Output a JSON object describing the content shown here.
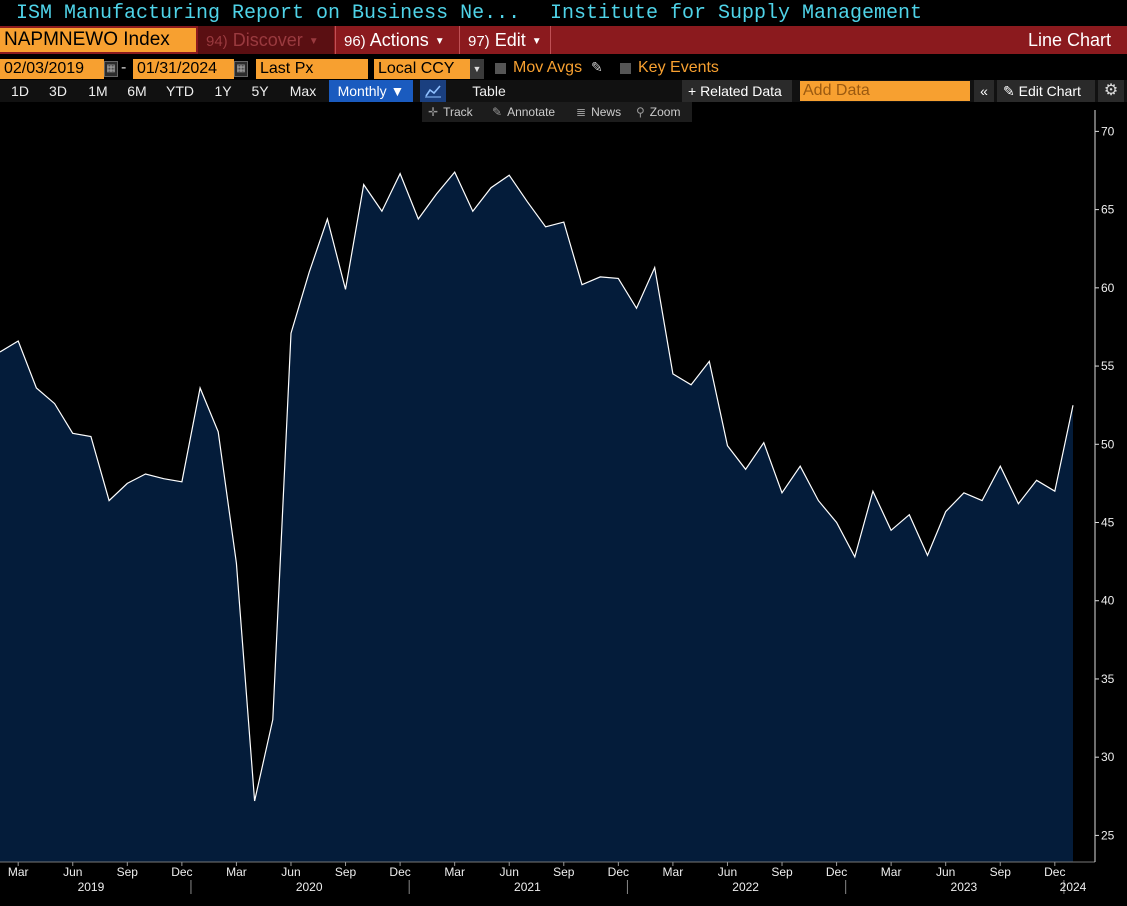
{
  "header": {
    "title": "ISM Manufacturing Report on Business Ne...",
    "source": "Institute for Supply Management"
  },
  "toolbar": {
    "ticker": "NAPMNEWO Index",
    "discover": {
      "num": "94)",
      "label": "Discover"
    },
    "actions": {
      "num": "96)",
      "label": "Actions"
    },
    "edit": {
      "num": "97)",
      "label": "Edit"
    },
    "chart_type": "Line Chart"
  },
  "settings": {
    "start_date": "02/03/2019",
    "end_date": "01/31/2024",
    "dash": "-",
    "field": "Last Px",
    "currency": "Local CCY",
    "mov_avgs": "Mov Avgs",
    "key_events": "Key Events"
  },
  "ranges": [
    "1D",
    "3D",
    "1M",
    "6M",
    "YTD",
    "1Y",
    "5Y",
    "Max"
  ],
  "periodicity": "Monthly ▼",
  "table_label": "Table",
  "related_data": "+ Related Data",
  "add_data_placeholder": "Add Data",
  "collapse": "«",
  "edit_chart": "Edit Chart",
  "chart_tools": {
    "track": "Track",
    "annotate": "Annotate",
    "news": "News",
    "zoom": "Zoom"
  },
  "icons": {
    "calendar": "calendar-icon",
    "chart": "line-chart-icon",
    "pencil": "pencil-icon",
    "gear": "gear-icon",
    "crosshair": "crosshair-icon",
    "zoom": "magnifier-icon"
  },
  "colors": {
    "accent_orange": "#f7a030",
    "header_red": "#8b1a1e",
    "title_cyan": "#4fd3e8",
    "area_fill": "#041c3a",
    "line": "#ffffff"
  },
  "chart_data": {
    "type": "area",
    "x": [
      "2019-02",
      "2019-03",
      "2019-04",
      "2019-05",
      "2019-06",
      "2019-07",
      "2019-08",
      "2019-09",
      "2019-10",
      "2019-11",
      "2019-12",
      "2020-01",
      "2020-02",
      "2020-03",
      "2020-04",
      "2020-05",
      "2020-06",
      "2020-07",
      "2020-08",
      "2020-09",
      "2020-10",
      "2020-11",
      "2020-12",
      "2021-01",
      "2021-02",
      "2021-03",
      "2021-04",
      "2021-05",
      "2021-06",
      "2021-07",
      "2021-08",
      "2021-09",
      "2021-10",
      "2021-11",
      "2021-12",
      "2022-01",
      "2022-02",
      "2022-03",
      "2022-04",
      "2022-05",
      "2022-06",
      "2022-07",
      "2022-08",
      "2022-09",
      "2022-10",
      "2022-11",
      "2022-12",
      "2023-01",
      "2023-02",
      "2023-03",
      "2023-04",
      "2023-05",
      "2023-06",
      "2023-07",
      "2023-08",
      "2023-09",
      "2023-10",
      "2023-11",
      "2023-12",
      "2024-01"
    ],
    "values": [
      55.9,
      56.6,
      53.6,
      52.6,
      50.7,
      50.5,
      46.4,
      47.5,
      48.1,
      47.8,
      47.6,
      53.6,
      50.8,
      42.4,
      27.2,
      32.4,
      57.1,
      61.0,
      64.4,
      59.9,
      66.6,
      64.9,
      67.3,
      64.4,
      66.0,
      67.4,
      64.9,
      66.4,
      67.2,
      65.5,
      63.9,
      64.2,
      60.2,
      60.7,
      60.6,
      58.7,
      61.3,
      54.5,
      53.8,
      55.3,
      49.9,
      48.4,
      50.1,
      46.9,
      48.6,
      46.4,
      45.0,
      42.8,
      47.0,
      44.5,
      45.5,
      42.9,
      45.7,
      46.9,
      46.4,
      48.6,
      46.2,
      47.7,
      47.0,
      52.5
    ],
    "y_ticks": [
      25,
      30,
      35,
      40,
      45,
      50,
      55,
      60,
      65,
      70
    ],
    "ylim": [
      23.3,
      70.6
    ],
    "y_axis_position": "right",
    "grid": false,
    "x_month_ticks": [
      {
        "date": "2019-03",
        "label": "Mar"
      },
      {
        "date": "2019-06",
        "label": "Jun"
      },
      {
        "date": "2019-09",
        "label": "Sep"
      },
      {
        "date": "2019-12",
        "label": "Dec"
      },
      {
        "date": "2020-03",
        "label": "Mar"
      },
      {
        "date": "2020-06",
        "label": "Jun"
      },
      {
        "date": "2020-09",
        "label": "Sep"
      },
      {
        "date": "2020-12",
        "label": "Dec"
      },
      {
        "date": "2021-03",
        "label": "Mar"
      },
      {
        "date": "2021-06",
        "label": "Jun"
      },
      {
        "date": "2021-09",
        "label": "Sep"
      },
      {
        "date": "2021-12",
        "label": "Dec"
      },
      {
        "date": "2022-03",
        "label": "Mar"
      },
      {
        "date": "2022-06",
        "label": "Jun"
      },
      {
        "date": "2022-09",
        "label": "Sep"
      },
      {
        "date": "2022-12",
        "label": "Dec"
      },
      {
        "date": "2023-03",
        "label": "Mar"
      },
      {
        "date": "2023-06",
        "label": "Jun"
      },
      {
        "date": "2023-09",
        "label": "Sep"
      },
      {
        "date": "2023-12",
        "label": "Dec"
      }
    ],
    "x_year_labels": [
      {
        "date": "2019-07",
        "label": "2019"
      },
      {
        "date": "2020-07",
        "label": "2020"
      },
      {
        "date": "2021-07",
        "label": "2021"
      },
      {
        "date": "2022-07",
        "label": "2022"
      },
      {
        "date": "2023-07",
        "label": "2023"
      },
      {
        "date": "2024-01",
        "label": "2024"
      }
    ]
  }
}
